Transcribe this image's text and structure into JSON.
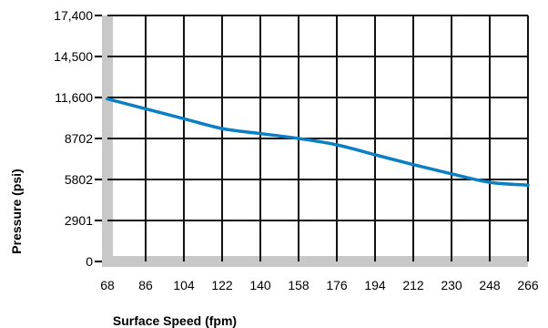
{
  "chart_data": {
    "type": "line",
    "xlabel": "Surface Speed (fpm)",
    "ylabel": "Pressure (psi)",
    "x_ticks": [
      68,
      86,
      104,
      122,
      140,
      158,
      176,
      194,
      212,
      230,
      248,
      266
    ],
    "y_ticks": [
      0,
      2901,
      5802,
      8702,
      11600,
      14500,
      17400
    ],
    "y_tick_labels": [
      "0",
      "2901",
      "5802",
      "8702",
      "11,600",
      "14,500",
      "17,400"
    ],
    "xlim": [
      68,
      266
    ],
    "ylim": [
      0,
      17400
    ],
    "grid": true,
    "series": [
      {
        "x": [
          68,
          86,
          104,
          122,
          140,
          158,
          176,
          194,
          212,
          230,
          248,
          266
        ],
        "values": [
          11500,
          10800,
          10100,
          9400,
          9050,
          8700,
          8250,
          7550,
          6850,
          6200,
          5600,
          5400
        ],
        "color": "#0a7fc4"
      }
    ],
    "axis_color": "#c8c8c8",
    "grid_color": "#111111"
  }
}
